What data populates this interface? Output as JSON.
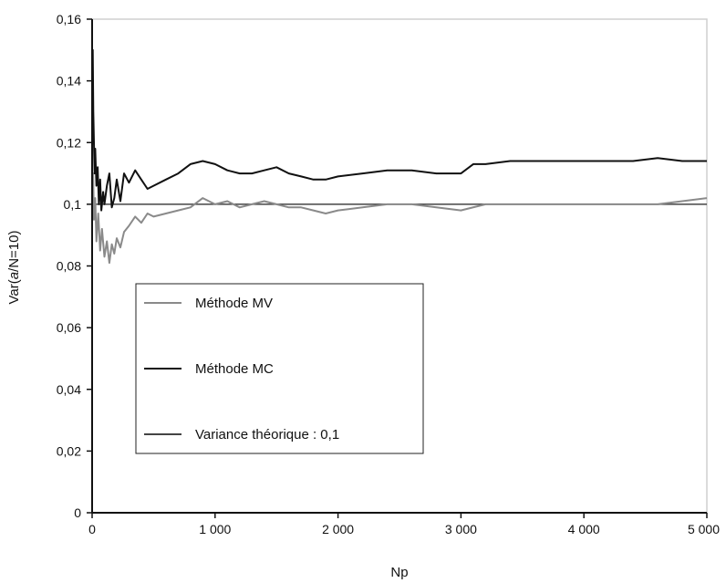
{
  "chart_data": {
    "type": "line",
    "xlabel": "Np",
    "ylabel_prefix": "Var(",
    "ylabel_italic": "a",
    "ylabel_suffix": "/N=10)",
    "xlim": [
      0,
      5000
    ],
    "ylim": [
      0,
      0.16
    ],
    "x_ticks": [
      {
        "value": 0,
        "label": "0"
      },
      {
        "value": 1000,
        "label": "1 000"
      },
      {
        "value": 2000,
        "label": "2 000"
      },
      {
        "value": 3000,
        "label": "3 000"
      },
      {
        "value": 4000,
        "label": "4 000"
      },
      {
        "value": 5000,
        "label": "5 000"
      }
    ],
    "y_ticks": [
      {
        "value": 0,
        "label": "0"
      },
      {
        "value": 0.02,
        "label": "0,02"
      },
      {
        "value": 0.04,
        "label": "0,04"
      },
      {
        "value": 0.06,
        "label": "0,06"
      },
      {
        "value": 0.08,
        "label": "0,08"
      },
      {
        "value": 0.1,
        "label": "0,1"
      },
      {
        "value": 0.12,
        "label": "0,12"
      },
      {
        "value": 0.14,
        "label": "0,14"
      },
      {
        "value": 0.16,
        "label": "0,16"
      }
    ],
    "grid": false,
    "legend_position": "lower-left",
    "series": [
      {
        "name": "Méthode MV",
        "color": "#8a8a8a",
        "x": [
          0,
          8,
          15,
          25,
          35,
          50,
          65,
          80,
          100,
          120,
          140,
          160,
          180,
          200,
          230,
          260,
          300,
          350,
          400,
          450,
          500,
          600,
          700,
          800,
          900,
          1000,
          1100,
          1200,
          1300,
          1400,
          1500,
          1600,
          1700,
          1800,
          1900,
          2000,
          2200,
          2400,
          2600,
          2800,
          3000,
          3200,
          3400,
          3600,
          3800,
          4000,
          4200,
          4400,
          4600,
          4800,
          5000
        ],
        "y": [
          0.1,
          0.11,
          0.095,
          0.102,
          0.088,
          0.097,
          0.085,
          0.092,
          0.083,
          0.088,
          0.081,
          0.087,
          0.084,
          0.089,
          0.086,
          0.091,
          0.093,
          0.096,
          0.094,
          0.097,
          0.096,
          0.097,
          0.098,
          0.099,
          0.102,
          0.1,
          0.101,
          0.099,
          0.1,
          0.101,
          0.1,
          0.099,
          0.099,
          0.098,
          0.097,
          0.098,
          0.099,
          0.1,
          0.1,
          0.099,
          0.098,
          0.1,
          0.1,
          0.1,
          0.1,
          0.1,
          0.1,
          0.1,
          0.1,
          0.101,
          0.102
        ]
      },
      {
        "name": "Méthode MC",
        "color": "#111111",
        "x": [
          0,
          5,
          10,
          15,
          20,
          25,
          35,
          45,
          55,
          65,
          75,
          90,
          100,
          120,
          140,
          160,
          180,
          200,
          230,
          260,
          300,
          350,
          400,
          450,
          500,
          600,
          700,
          800,
          900,
          1000,
          1100,
          1200,
          1300,
          1400,
          1500,
          1600,
          1700,
          1800,
          1900,
          2000,
          2200,
          2400,
          2600,
          2800,
          3000,
          3100,
          3200,
          3400,
          3600,
          3800,
          4000,
          4200,
          4400,
          4600,
          4800,
          5000
        ],
        "y": [
          0.12,
          0.15,
          0.13,
          0.12,
          0.11,
          0.118,
          0.106,
          0.112,
          0.1,
          0.108,
          0.098,
          0.104,
          0.1,
          0.106,
          0.11,
          0.099,
          0.102,
          0.108,
          0.101,
          0.11,
          0.107,
          0.111,
          0.108,
          0.105,
          0.106,
          0.108,
          0.11,
          0.113,
          0.114,
          0.113,
          0.111,
          0.11,
          0.11,
          0.111,
          0.112,
          0.11,
          0.109,
          0.108,
          0.108,
          0.109,
          0.11,
          0.111,
          0.111,
          0.11,
          0.11,
          0.113,
          0.113,
          0.114,
          0.114,
          0.114,
          0.114,
          0.114,
          0.114,
          0.115,
          0.114,
          0.114
        ]
      },
      {
        "name": "Variance théorique : 0,1",
        "color": "#444444",
        "x": [
          0,
          5000
        ],
        "y": [
          0.1,
          0.1
        ]
      }
    ]
  }
}
